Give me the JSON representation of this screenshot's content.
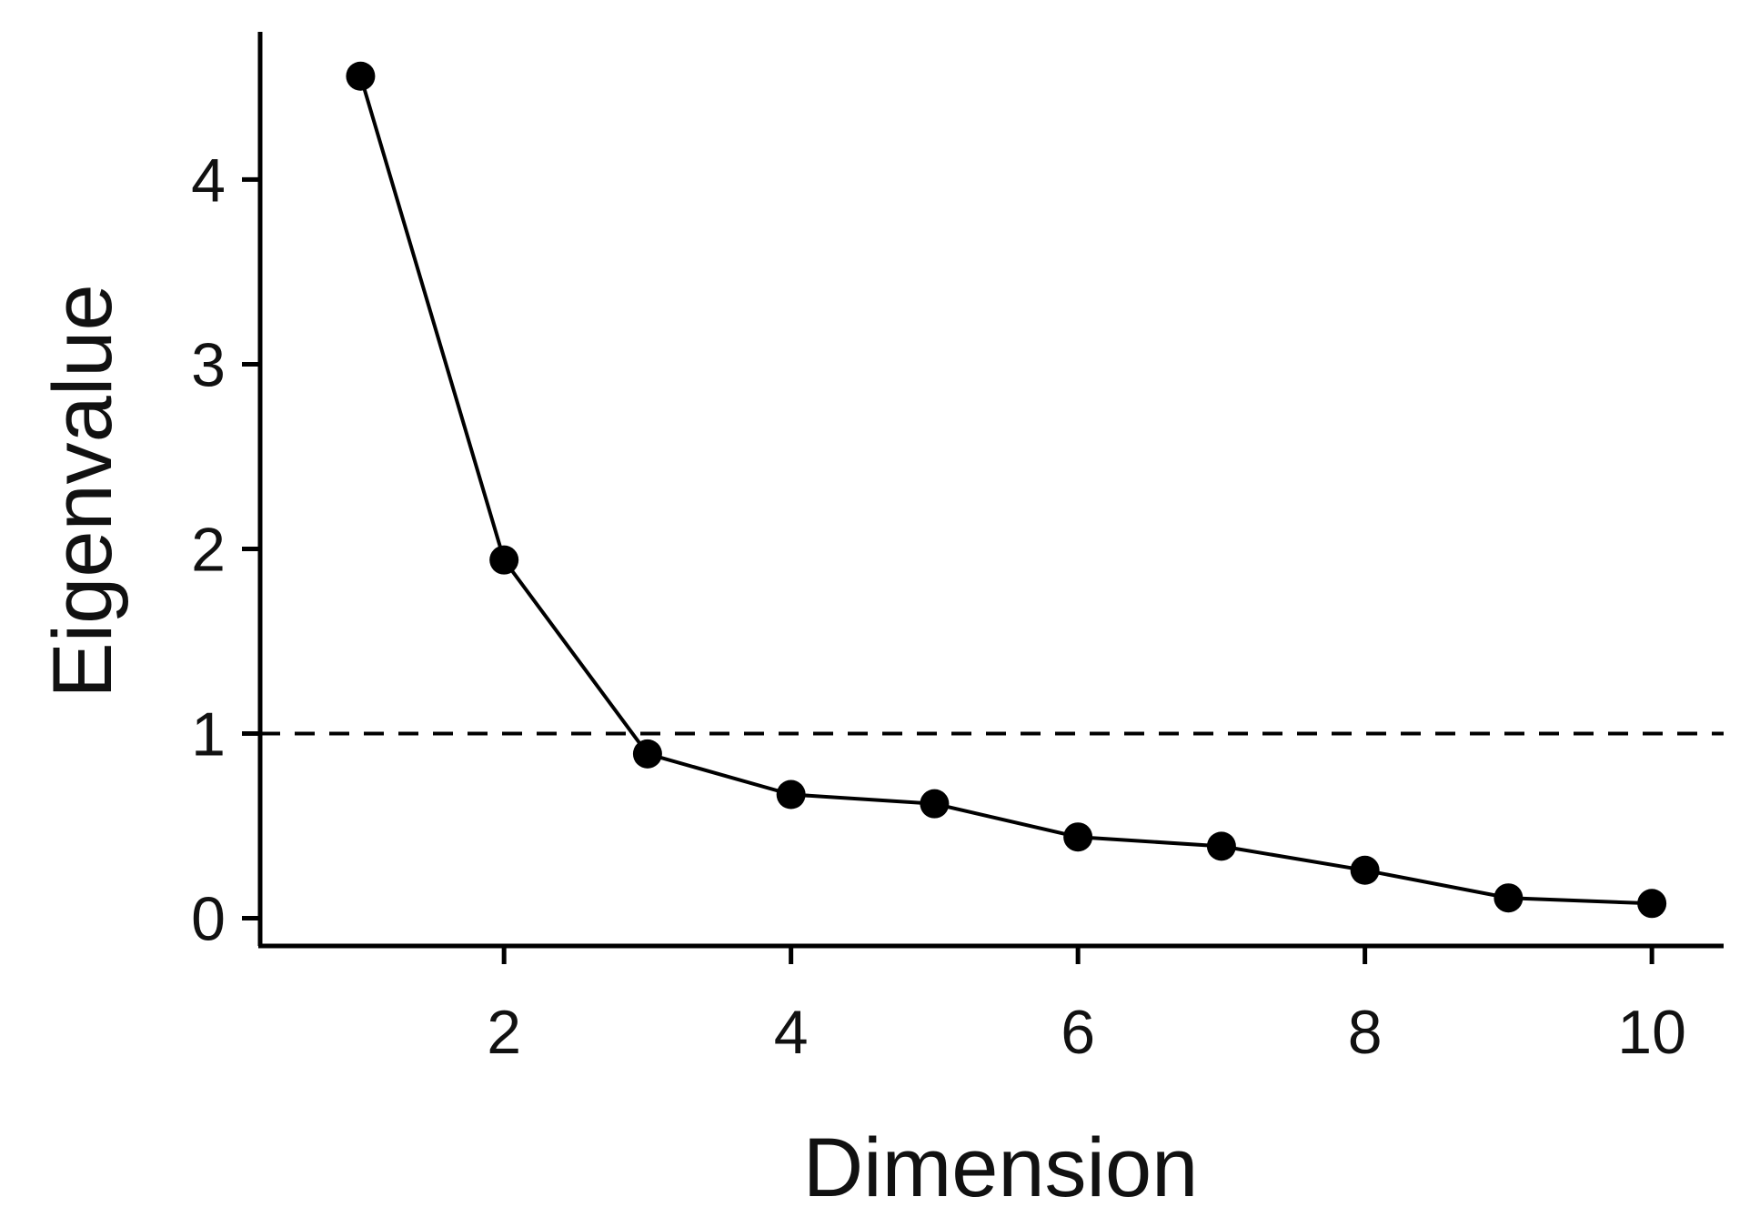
{
  "chart_data": {
    "type": "line",
    "xlabel": "Dimension",
    "ylabel": "Eigenvalue",
    "x": [
      1,
      2,
      3,
      4,
      5,
      6,
      7,
      8,
      9,
      10
    ],
    "series": [
      {
        "values": [
          4.56,
          1.94,
          0.89,
          0.67,
          0.62,
          0.44,
          0.39,
          0.26,
          0.11,
          0.08
        ]
      }
    ],
    "xlim": [
      0.3,
      10.5
    ],
    "ylim": [
      -0.15,
      4.8
    ],
    "xticks": [
      2,
      4,
      6,
      8,
      10
    ],
    "yticks": [
      0,
      1,
      2,
      3,
      4
    ],
    "reference_line": {
      "y": 1,
      "style": "dashed"
    },
    "grid": false,
    "markers": "filled-circle",
    "colors": {
      "line": "#000000",
      "marker": "#000000",
      "axis": "#000000"
    }
  }
}
